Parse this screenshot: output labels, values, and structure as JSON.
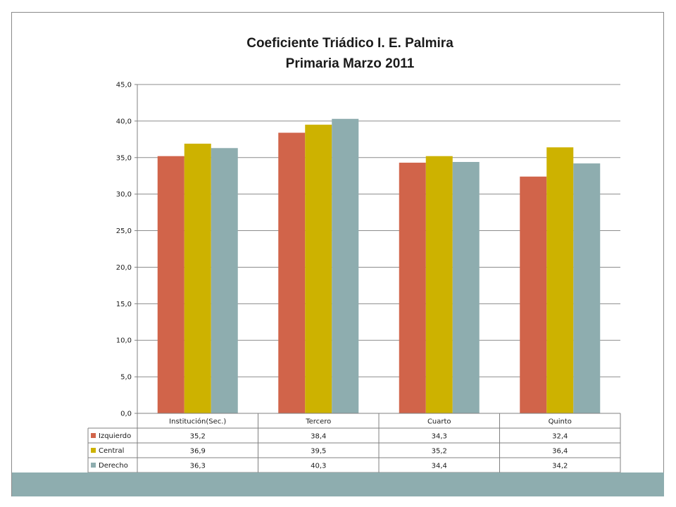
{
  "chart_data": {
    "type": "bar",
    "title": "Coeficiente Triádico I. E. Palmira",
    "subtitle": "Primaria Marzo 2011",
    "categories": [
      "Institución(Sec.)",
      "Tercero",
      "Cuarto",
      "Quinto"
    ],
    "series": [
      {
        "name": "Izquierdo",
        "color": "#d1644a",
        "values": [
          35.2,
          38.4,
          34.3,
          32.4
        ],
        "labels": [
          "35,2",
          "38,4",
          "34,3",
          "32,4"
        ]
      },
      {
        "name": "Central",
        "color": "#cdb200",
        "values": [
          36.9,
          39.5,
          35.2,
          36.4
        ],
        "labels": [
          "36,9",
          "39,5",
          "35,2",
          "36,4"
        ]
      },
      {
        "name": "Derecho",
        "color": "#8eadaf",
        "values": [
          36.3,
          40.3,
          34.4,
          34.2
        ],
        "labels": [
          "36,3",
          "40,3",
          "34,4",
          "34,2"
        ]
      }
    ],
    "ylim": [
      0,
      45
    ],
    "y_ticks": [
      0,
      5,
      10,
      15,
      20,
      25,
      30,
      35,
      40,
      45
    ],
    "y_tick_labels": [
      "0,0",
      "5,0",
      "10,0",
      "15,0",
      "20,0",
      "25,0",
      "30,0",
      "35,0",
      "40,0",
      "45,0"
    ],
    "grid": "horizontal",
    "legend": "data-table-bottom"
  }
}
